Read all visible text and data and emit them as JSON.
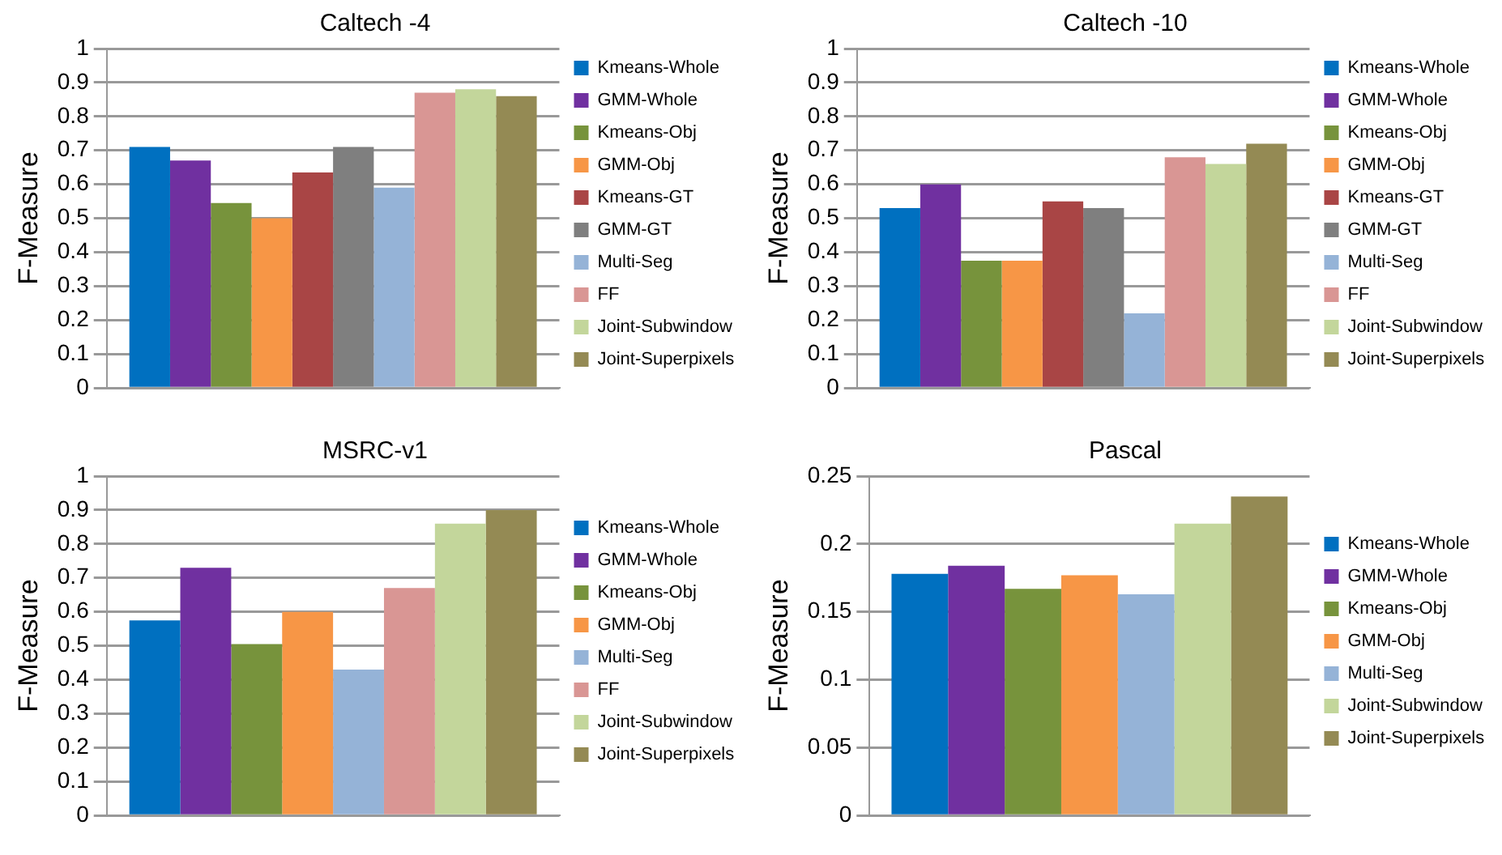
{
  "chart_data": [
    {
      "type": "bar",
      "title": "Caltech -4",
      "ylabel": "F-Measure",
      "categories": [
        null
      ],
      "ylim": [
        0,
        1
      ],
      "yticks": [
        0,
        0.1,
        0.2,
        0.3,
        0.4,
        0.5,
        0.6,
        0.7,
        0.8,
        0.9,
        1
      ],
      "grid": "y",
      "legend": "right",
      "series": [
        {
          "name": "Kmeans-Whole",
          "color": "#0070c0",
          "values": [
            0.71
          ]
        },
        {
          "name": "GMM-Whole",
          "color": "#7030a0",
          "values": [
            0.67
          ]
        },
        {
          "name": "Kmeans-Obj",
          "color": "#77933c",
          "values": [
            0.545
          ]
        },
        {
          "name": "GMM-Obj",
          "color": "#f79646",
          "values": [
            0.5
          ]
        },
        {
          "name": "Kmeans-GT",
          "color": "#a94545",
          "values": [
            0.635
          ]
        },
        {
          "name": "GMM-GT",
          "color": "#7f7f7f",
          "values": [
            0.71
          ]
        },
        {
          "name": "Multi-Seg",
          "color": "#95b3d7",
          "values": [
            0.59
          ]
        },
        {
          "name": "FF",
          "color": "#d99694",
          "values": [
            0.87
          ]
        },
        {
          "name": "Joint-Subwindow",
          "color": "#c3d69b",
          "values": [
            0.88
          ]
        },
        {
          "name": "Joint-Superpixels",
          "color": "#948a54",
          "values": [
            0.86
          ]
        }
      ]
    },
    {
      "type": "bar",
      "title": "Caltech -10",
      "ylabel": "F-Measure",
      "categories": [
        null
      ],
      "ylim": [
        0,
        1
      ],
      "yticks": [
        0,
        0.1,
        0.2,
        0.3,
        0.4,
        0.5,
        0.6,
        0.7,
        0.8,
        0.9,
        1
      ],
      "grid": "y",
      "legend": "right",
      "series": [
        {
          "name": "Kmeans-Whole",
          "color": "#0070c0",
          "values": [
            0.53
          ]
        },
        {
          "name": "GMM-Whole",
          "color": "#7030a0",
          "values": [
            0.6
          ]
        },
        {
          "name": "Kmeans-Obj",
          "color": "#77933c",
          "values": [
            0.375
          ]
        },
        {
          "name": "GMM-Obj",
          "color": "#f79646",
          "values": [
            0.375
          ]
        },
        {
          "name": "Kmeans-GT",
          "color": "#a94545",
          "values": [
            0.55
          ]
        },
        {
          "name": "GMM-GT",
          "color": "#7f7f7f",
          "values": [
            0.53
          ]
        },
        {
          "name": "Multi-Seg",
          "color": "#95b3d7",
          "values": [
            0.22
          ]
        },
        {
          "name": "FF",
          "color": "#d99694",
          "values": [
            0.68
          ]
        },
        {
          "name": "Joint-Subwindow",
          "color": "#c3d69b",
          "values": [
            0.66
          ]
        },
        {
          "name": "Joint-Superpixels",
          "color": "#948a54",
          "values": [
            0.72
          ]
        }
      ]
    },
    {
      "type": "bar",
      "title": "MSRC-v1",
      "ylabel": "F-Measure",
      "categories": [
        null
      ],
      "ylim": [
        0,
        1
      ],
      "yticks": [
        0,
        0.1,
        0.2,
        0.3,
        0.4,
        0.5,
        0.6,
        0.7,
        0.8,
        0.9,
        1
      ],
      "grid": "y",
      "legend": "right",
      "series": [
        {
          "name": "Kmeans-Whole",
          "color": "#0070c0",
          "values": [
            0.575
          ]
        },
        {
          "name": "GMM-Whole",
          "color": "#7030a0",
          "values": [
            0.73
          ]
        },
        {
          "name": "Kmeans-Obj",
          "color": "#77933c",
          "values": [
            0.505
          ]
        },
        {
          "name": "GMM-Obj",
          "color": "#f79646",
          "values": [
            0.6
          ]
        },
        {
          "name": "Multi-Seg",
          "color": "#95b3d7",
          "values": [
            0.43
          ]
        },
        {
          "name": "FF",
          "color": "#d99694",
          "values": [
            0.67
          ]
        },
        {
          "name": "Joint-Subwindow",
          "color": "#c3d69b",
          "values": [
            0.86
          ]
        },
        {
          "name": "Joint-Superpixels",
          "color": "#948a54",
          "values": [
            0.9
          ]
        }
      ]
    },
    {
      "type": "bar",
      "title": "Pascal",
      "ylabel": "F-Measure",
      "categories": [
        null
      ],
      "ylim": [
        0,
        0.25
      ],
      "yticks": [
        0,
        0.05,
        0.1,
        0.15,
        0.2,
        0.25
      ],
      "grid": "y",
      "legend": "right",
      "series": [
        {
          "name": "Kmeans-Whole",
          "color": "#0070c0",
          "values": [
            0.178
          ]
        },
        {
          "name": "GMM-Whole",
          "color": "#7030a0",
          "values": [
            0.184
          ]
        },
        {
          "name": "Kmeans-Obj",
          "color": "#77933c",
          "values": [
            0.167
          ]
        },
        {
          "name": "GMM-Obj",
          "color": "#f79646",
          "values": [
            0.177
          ]
        },
        {
          "name": "Multi-Seg",
          "color": "#95b3d7",
          "values": [
            0.163
          ]
        },
        {
          "name": "Joint-Subwindow",
          "color": "#c3d69b",
          "values": [
            0.215
          ]
        },
        {
          "name": "Joint-Superpixels",
          "color": "#948a54",
          "values": [
            0.235
          ]
        }
      ]
    }
  ]
}
